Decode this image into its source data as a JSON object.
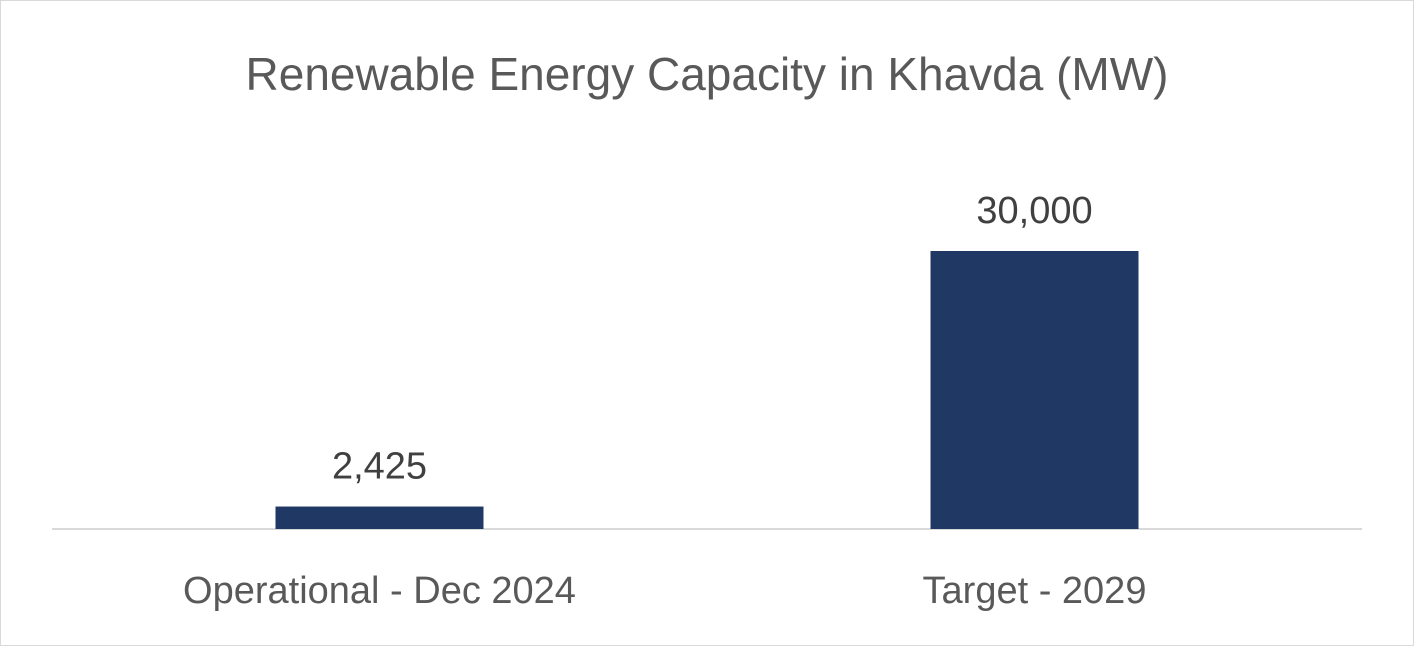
{
  "chart_data": {
    "type": "bar",
    "title": "Renewable Energy Capacity in Khavda (MW)",
    "categories": [
      "Operational - Dec 2024",
      "Target - 2029"
    ],
    "values": [
      2425,
      30000
    ],
    "data_labels": [
      "2,425",
      "30,000"
    ],
    "ylim": [
      0,
      32000
    ],
    "grid": false,
    "legend": "none",
    "bar_color": "#203864",
    "axis_color": "#d9d9d9"
  }
}
